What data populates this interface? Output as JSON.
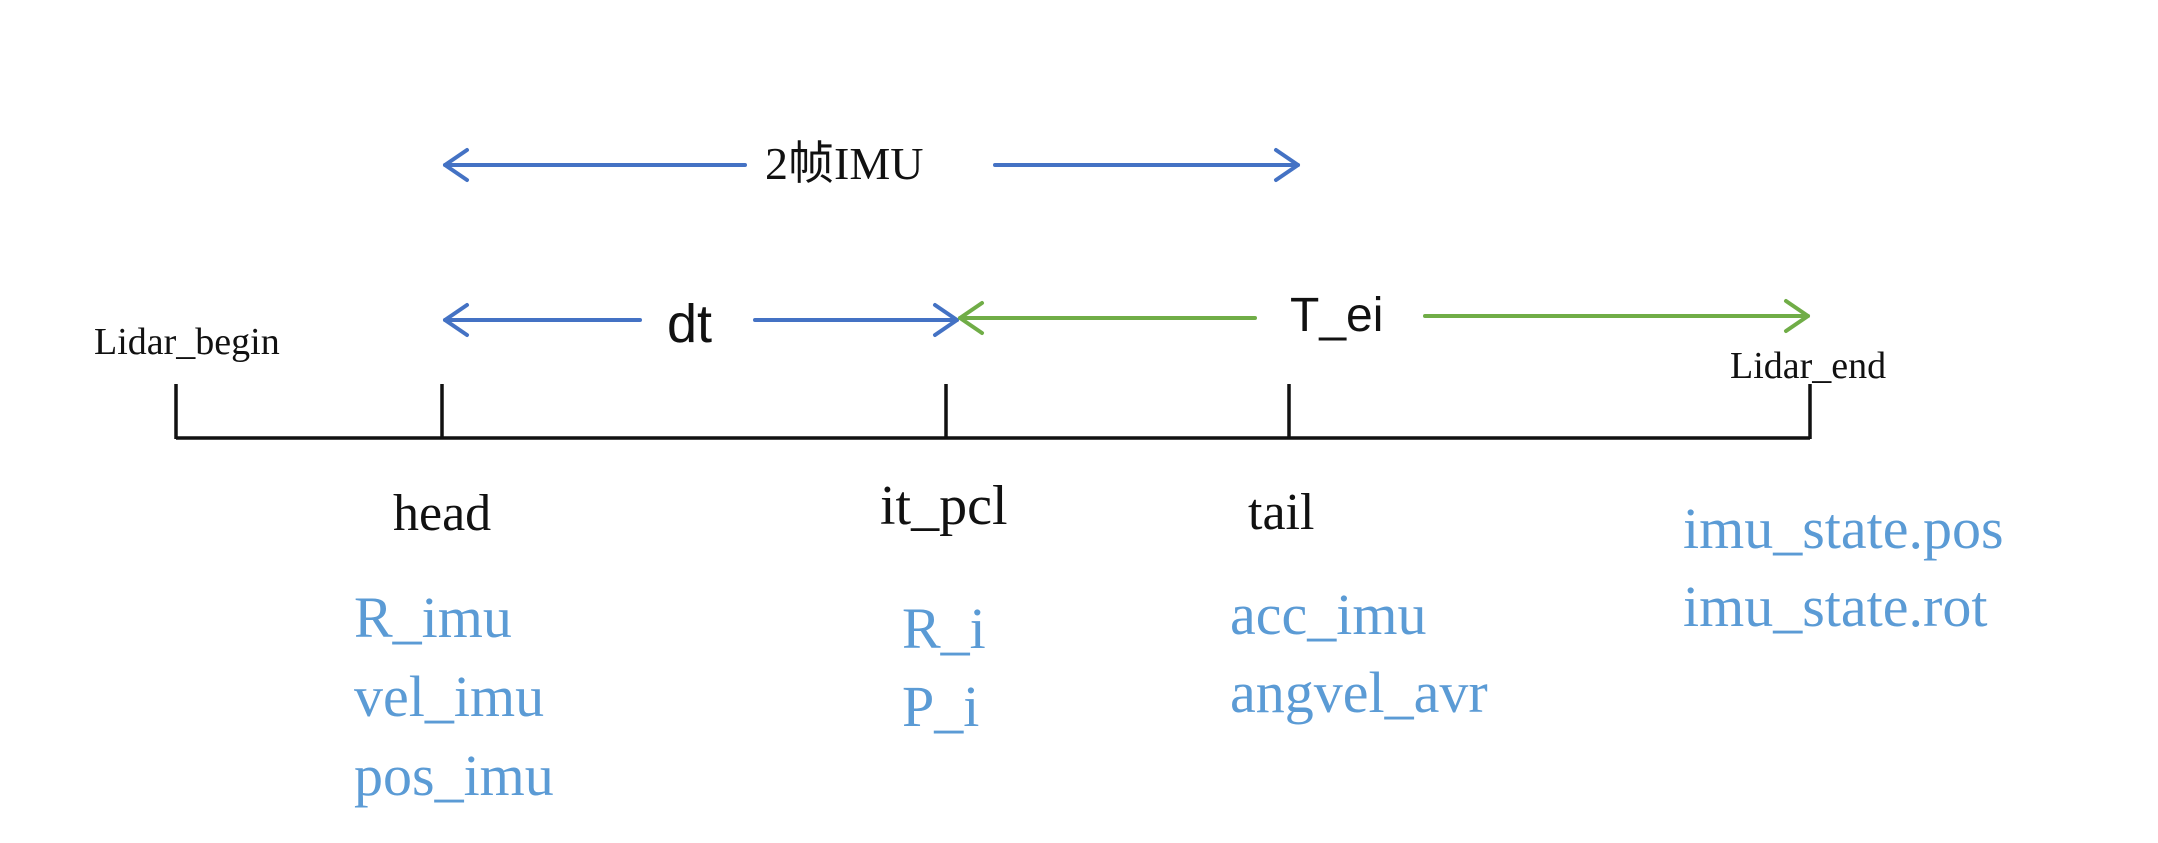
{
  "colors": {
    "blue_arrow": "#4472c4",
    "green_arrow": "#70ad47",
    "axis": "#111111",
    "blue_text": "#5b9bd5"
  },
  "spans": {
    "two_frame_imu": "2帧IMU",
    "dt": "dt",
    "t_ei": "T_ei"
  },
  "endpoints": {
    "begin": "Lidar_begin",
    "end": "Lidar_end"
  },
  "ticks": {
    "head": "head",
    "it_pcl": "it_pcl",
    "tail": "tail"
  },
  "variables": {
    "head": [
      "R_imu",
      "vel_imu",
      "pos_imu"
    ],
    "it_pcl": [
      "R_i",
      "P_i"
    ],
    "tail": [
      "acc_imu",
      "angvel_avr"
    ],
    "end": [
      "imu_state.pos",
      "imu_state.rot"
    ]
  }
}
